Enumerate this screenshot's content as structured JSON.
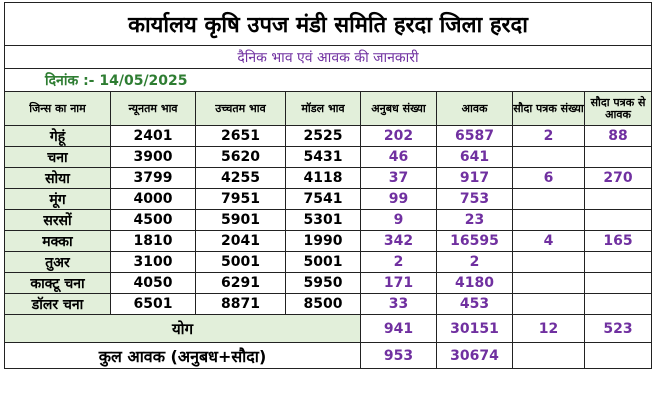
{
  "title": "कार्यालय कृषि उपज मंडी समिति हरदा जिला हरदा",
  "subtitle": "दैनिक भाव एवं आवक की जानकारी",
  "date_label": "दिनांक :- 14/05/2025",
  "headers": [
    "जिन्स का नाम",
    "न्यूनतम भाव",
    "उच्चतम भाव",
    "मॉडल भाव",
    "अनुबध संख्या",
    "आवक",
    "सौदा पत्रक संख्या",
    "सौदा पत्रक से आवक"
  ],
  "rows": [
    {
      "crop": "गेहूं",
      "min": "2401",
      "max": "2651",
      "model": "2525",
      "anubandh": "202",
      "aavak": "6587",
      "sauda_count": "2",
      "sauda_aavak": "88"
    },
    {
      "crop": "चना",
      "min": "3900",
      "max": "5620",
      "model": "5431",
      "anubandh": "46",
      "aavak": "641",
      "sauda_count": "",
      "sauda_aavak": ""
    },
    {
      "crop": "सोया",
      "min": "3799",
      "max": "4255",
      "model": "4118",
      "anubandh": "37",
      "aavak": "917",
      "sauda_count": "6",
      "sauda_aavak": "270"
    },
    {
      "crop": "मूंग",
      "min": "4000",
      "max": "7951",
      "model": "7541",
      "anubandh": "99",
      "aavak": "753",
      "sauda_count": "",
      "sauda_aavak": ""
    },
    {
      "crop": "सरसों",
      "min": "4500",
      "max": "5901",
      "model": "5301",
      "anubandh": "9",
      "aavak": "23",
      "sauda_count": "",
      "sauda_aavak": ""
    },
    {
      "crop": "मक्का",
      "min": "1810",
      "max": "2041",
      "model": "1990",
      "anubandh": "342",
      "aavak": "16595",
      "sauda_count": "4",
      "sauda_aavak": "165"
    },
    {
      "crop": "तुअर",
      "min": "3100",
      "max": "5001",
      "model": "5001",
      "anubandh": "2",
      "aavak": "2",
      "sauda_count": "",
      "sauda_aavak": ""
    },
    {
      "crop": "काक्टू चना",
      "min": "4050",
      "max": "6291",
      "model": "5950",
      "anubandh": "171",
      "aavak": "4180",
      "sauda_count": "",
      "sauda_aavak": ""
    },
    {
      "crop": "डॉलर चना",
      "min": "6501",
      "max": "8871",
      "model": "8500",
      "anubandh": "33",
      "aavak": "453",
      "sauda_count": "",
      "sauda_aavak": ""
    }
  ],
  "total": {
    "label": "योग",
    "anubandh": "941",
    "aavak": "30151",
    "sauda_count": "12",
    "sauda_aavak": "523"
  },
  "grand_total": {
    "label": "कुल आवक (अनुबध+सौदा)",
    "anubandh": "953",
    "aavak": "30674"
  },
  "colors": {
    "header_bg": "#e2efda",
    "purple": "#7030a0",
    "green": "#2e7d32"
  }
}
